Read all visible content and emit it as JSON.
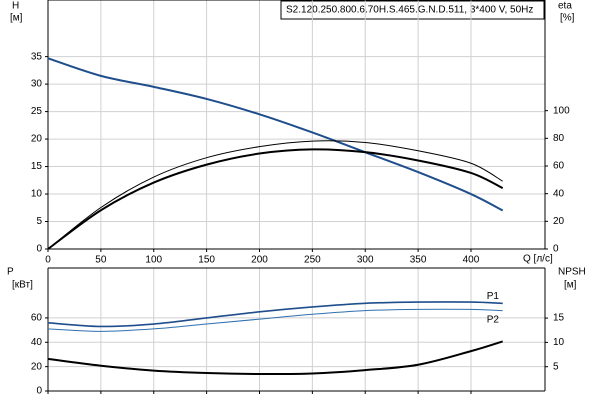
{
  "chart_data": [
    {
      "type": "line",
      "title": "S2.120.250.800.6.70H.S.465.G.N.D.511, 3*400 V, 50Hz",
      "ylabel": "H",
      "ylabel_unit": "[м]",
      "y2label": "eta",
      "y2label_unit": "[%]",
      "xlabel": "Q [л/с]",
      "x": [
        0,
        50,
        100,
        150,
        200,
        250,
        300,
        350,
        400,
        430
      ],
      "series": [
        {
          "color": "#1f4e8c",
          "values": [
            34.7,
            31.5,
            29.5,
            27.3,
            24.5,
            21.2,
            17.6,
            14,
            10,
            7
          ]
        },
        {
          "color": "#000000",
          "axis": "y2",
          "values": [
            0,
            30,
            52,
            66,
            74,
            78,
            77,
            71,
            62,
            49
          ]
        },
        {
          "color": "#000000",
          "axis": "y2",
          "values": [
            0,
            28,
            48,
            61,
            69,
            72,
            70,
            64,
            55,
            44
          ]
        }
      ],
      "xlim": [
        0,
        470
      ],
      "xticks": [
        0,
        50,
        100,
        150,
        200,
        250,
        300,
        350,
        400
      ],
      "ylim": [
        0,
        45.3
      ],
      "yticks": [
        0,
        5,
        10,
        15,
        20,
        25,
        30,
        35
      ],
      "y2lim": [
        0,
        180
      ],
      "y2ticks": [
        0,
        20,
        40,
        60,
        80,
        100
      ],
      "grid": true
    },
    {
      "type": "line",
      "ylabel": "P",
      "ylabel_unit": "[кВт]",
      "y2label": "NPSH",
      "y2label_unit": "[м]",
      "x": [
        0,
        50,
        100,
        150,
        200,
        250,
        300,
        350,
        400,
        430
      ],
      "series": [
        {
          "name": "P1",
          "color": "#1f4e8c",
          "values": [
            56,
            53,
            55,
            60,
            65,
            69,
            72,
            73,
            73,
            72
          ]
        },
        {
          "name": "P2",
          "color": "#2e6fb0",
          "values": [
            51,
            49,
            51,
            55,
            59,
            63,
            66,
            67,
            67,
            66
          ]
        },
        {
          "color": "#000000",
          "axis": "y2",
          "values": [
            6.6,
            5.2,
            4.2,
            3.7,
            3.5,
            3.6,
            4.3,
            5.4,
            8.2,
            10.2
          ]
        }
      ],
      "xlim": [
        0,
        470
      ],
      "ylim": [
        0,
        101
      ],
      "yticks": [
        0,
        20,
        40,
        60
      ],
      "y2lim": [
        0,
        25.3
      ],
      "y2ticks": [
        5,
        10,
        15
      ],
      "grid": true
    }
  ]
}
